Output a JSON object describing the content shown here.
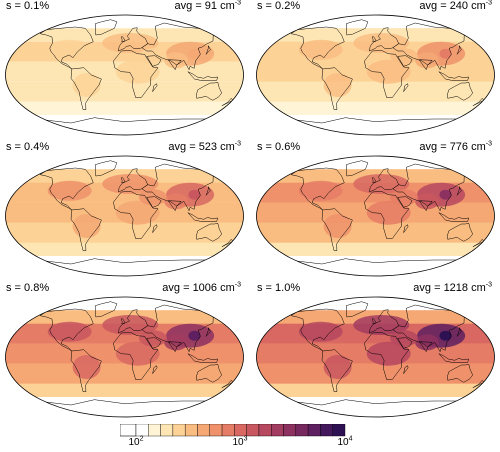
{
  "panels": [
    {
      "s_label": "s = 0.1%",
      "avg_prefix": "avg = 91 cm",
      "avg_exp": "-3",
      "level": 0.1
    },
    {
      "s_label": "s = 0.2%",
      "avg_prefix": "avg = 240 cm",
      "avg_exp": "-3",
      "level": 0.2
    },
    {
      "s_label": "s = 0.4%",
      "avg_prefix": "avg = 523 cm",
      "avg_exp": "-3",
      "level": 0.4
    },
    {
      "s_label": "s = 0.6%",
      "avg_prefix": "avg = 776 cm",
      "avg_exp": "-3",
      "level": 0.6
    },
    {
      "s_label": "s = 0.8%",
      "avg_prefix": "avg = 1006 cm",
      "avg_exp": "-3",
      "level": 0.8
    },
    {
      "s_label": "s = 1.0%",
      "avg_prefix": "avg = 1218 cm",
      "avg_exp": "-3",
      "level": 1.0
    }
  ],
  "colorbar": {
    "scale": "log",
    "range": [
      100,
      10000
    ],
    "ticks": [
      {
        "base": "10",
        "exp": "2"
      },
      {
        "base": "10",
        "exp": "3"
      },
      {
        "base": "10",
        "exp": "4"
      }
    ],
    "colors": [
      "#ffffff",
      "#fff5d6",
      "#fde6b4",
      "#fcd296",
      "#f9bd82",
      "#f5a874",
      "#ef926b",
      "#e57c65",
      "#d86861",
      "#c8575f",
      "#b6485f",
      "#a23c60",
      "#8d3160",
      "#76285f",
      "#5e2060",
      "#44185c",
      "#2d1152"
    ]
  }
}
